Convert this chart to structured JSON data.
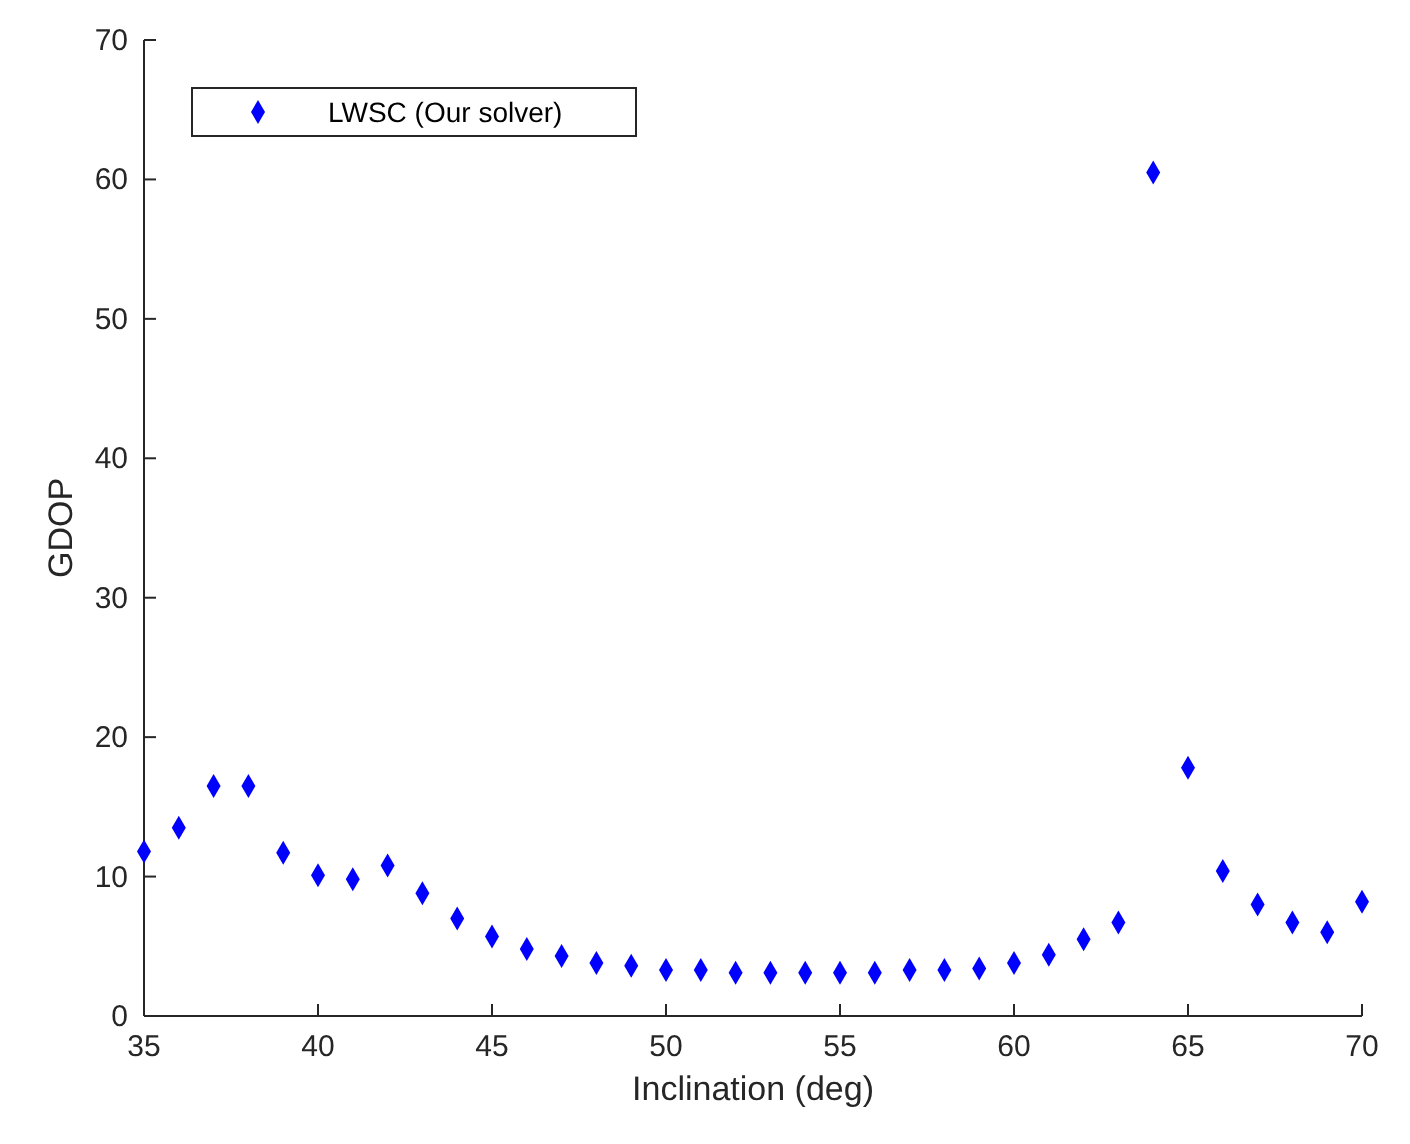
{
  "chart_data": {
    "type": "scatter",
    "xlabel": "Inclination (deg)",
    "ylabel": "GDOP",
    "x": [
      35,
      36,
      37,
      38,
      39,
      40,
      41,
      42,
      43,
      44,
      45,
      46,
      47,
      48,
      49,
      50,
      51,
      52,
      53,
      54,
      55,
      56,
      57,
      58,
      59,
      60,
      61,
      62,
      63,
      64,
      65,
      66,
      67,
      68,
      69,
      70
    ],
    "series": [
      {
        "name": "LWSC (Our solver)",
        "color": "#0000ff",
        "values": [
          11.8,
          13.5,
          16.5,
          16.5,
          11.7,
          10.1,
          9.8,
          10.8,
          8.8,
          7.0,
          5.7,
          4.8,
          4.3,
          3.8,
          3.6,
          3.3,
          3.3,
          3.1,
          3.1,
          3.1,
          3.1,
          3.1,
          3.3,
          3.3,
          3.4,
          3.8,
          4.4,
          5.5,
          6.7,
          60.5,
          17.8,
          10.4,
          8.0,
          6.7,
          6.0,
          8.2
        ]
      }
    ],
    "xlim": [
      35,
      70
    ],
    "xticks": [
      35,
      40,
      45,
      50,
      55,
      60,
      65,
      70
    ],
    "ylim": [
      0,
      70
    ],
    "yticks": [
      0,
      10,
      20,
      30,
      40,
      50,
      60,
      70
    ],
    "marker": "diamond",
    "legend": "top left",
    "grid": false
  }
}
